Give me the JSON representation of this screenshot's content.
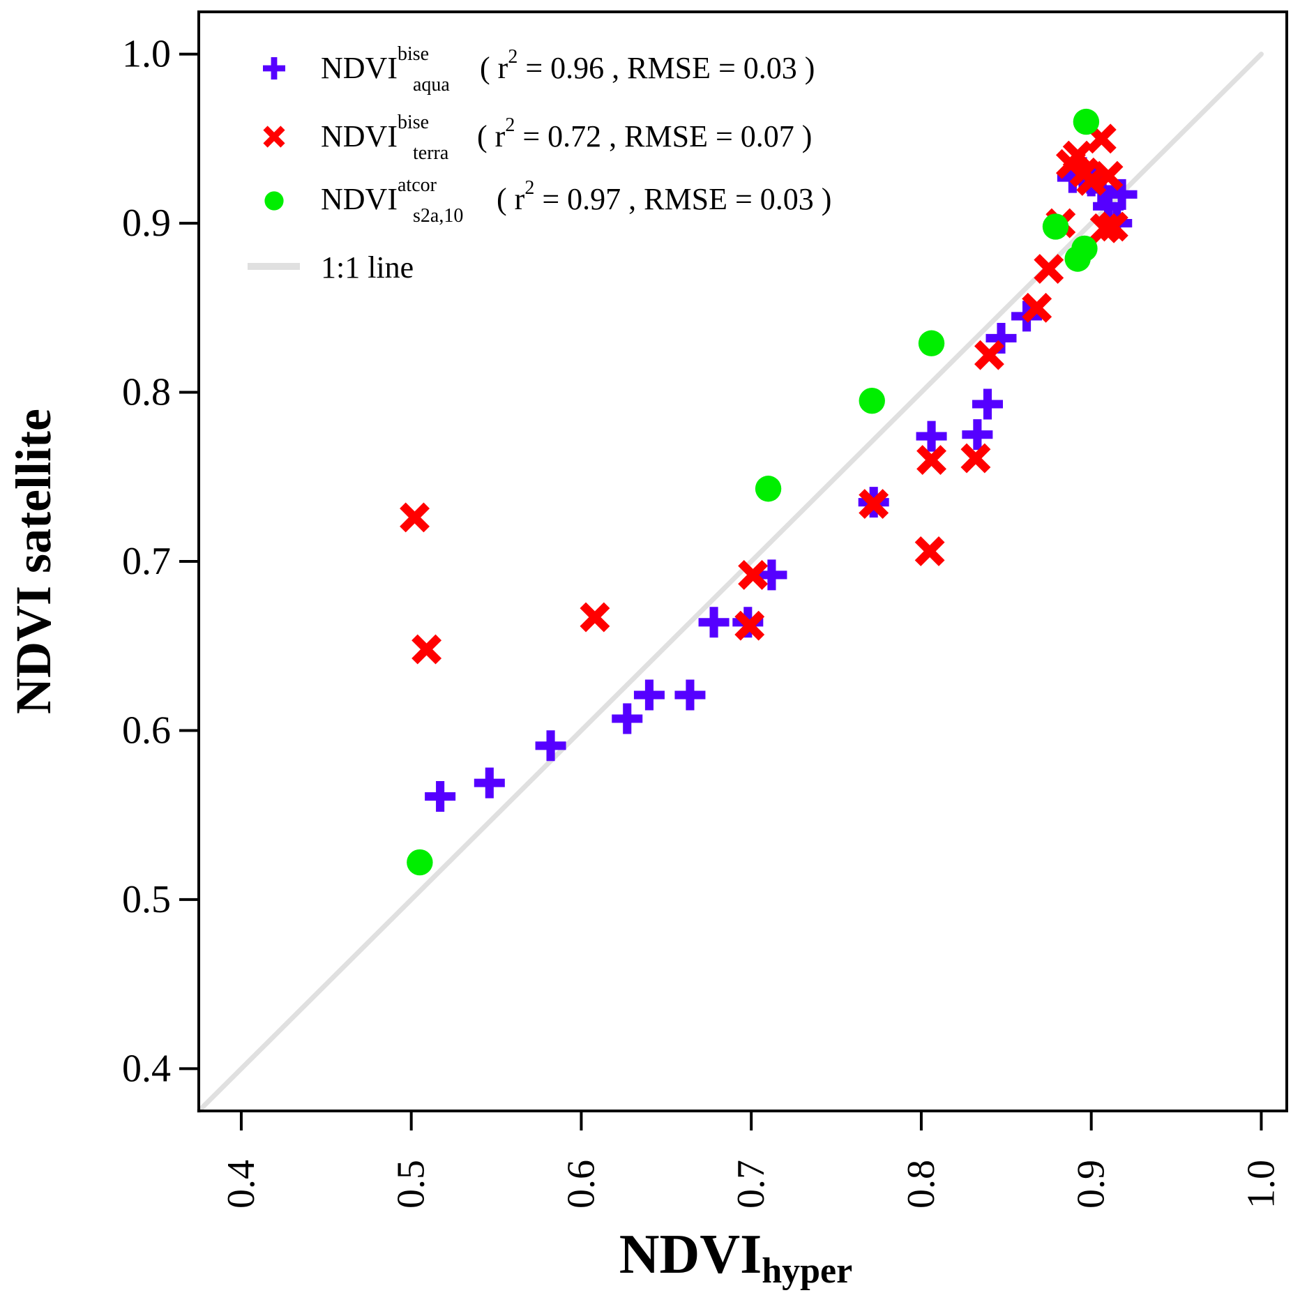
{
  "chart_data": {
    "type": "scatter",
    "title": "",
    "xlabel": {
      "main": "NDVI",
      "sub": "hyper"
    },
    "ylabel": "NDVI satellite",
    "xlim": [
      0.375,
      1.015
    ],
    "ylim": [
      0.375,
      1.025
    ],
    "xticks": [
      "0.4",
      "0.5",
      "0.6",
      "0.7",
      "0.8",
      "0.9",
      "1.0"
    ],
    "yticks": [
      "0.4",
      "0.5",
      "0.6",
      "0.7",
      "0.8",
      "0.9",
      "1.0"
    ],
    "xtick_values": [
      0.4,
      0.5,
      0.6,
      0.7,
      0.8,
      0.9,
      1.0
    ],
    "ytick_values": [
      0.4,
      0.5,
      0.6,
      0.7,
      0.8,
      0.9,
      1.0
    ],
    "series": [
      {
        "name": "aqua",
        "marker": "plus",
        "color": "#5500ff",
        "legend": {
          "base": "NDVI",
          "sup": "bise",
          "sub": "aqua",
          "stats_pre": "( r",
          "stats_exp": "2",
          "stats_post": " = 0.96 , RMSE = 0.03 )"
        },
        "points": [
          [
            0.517,
            0.561
          ],
          [
            0.546,
            0.569
          ],
          [
            0.582,
            0.591
          ],
          [
            0.627,
            0.607
          ],
          [
            0.64,
            0.621
          ],
          [
            0.664,
            0.621
          ],
          [
            0.678,
            0.664
          ],
          [
            0.698,
            0.664
          ],
          [
            0.712,
            0.692
          ],
          [
            0.772,
            0.735
          ],
          [
            0.806,
            0.774
          ],
          [
            0.833,
            0.775
          ],
          [
            0.839,
            0.793
          ],
          [
            0.847,
            0.832
          ],
          [
            0.862,
            0.845
          ],
          [
            0.889,
            0.927
          ],
          [
            0.895,
            0.93
          ],
          [
            0.9,
            0.925
          ],
          [
            0.906,
            0.92
          ],
          [
            0.91,
            0.91
          ],
          [
            0.915,
            0.9
          ],
          [
            0.918,
            0.917
          ]
        ]
      },
      {
        "name": "terra",
        "marker": "cross",
        "color": "#ff0000",
        "legend": {
          "base": "NDVI",
          "sup": "bise",
          "sub": "terra",
          "stats_pre": "( r",
          "stats_exp": "2",
          "stats_post": " = 0.72 , RMSE = 0.07 )"
        },
        "points": [
          [
            0.502,
            0.726
          ],
          [
            0.509,
            0.648
          ],
          [
            0.608,
            0.667
          ],
          [
            0.699,
            0.662
          ],
          [
            0.701,
            0.692
          ],
          [
            0.772,
            0.734
          ],
          [
            0.806,
            0.76
          ],
          [
            0.805,
            0.706
          ],
          [
            0.832,
            0.761
          ],
          [
            0.84,
            0.822
          ],
          [
            0.868,
            0.85
          ],
          [
            0.875,
            0.873
          ],
          [
            0.882,
            0.9
          ],
          [
            0.888,
            0.935
          ],
          [
            0.892,
            0.94
          ],
          [
            0.896,
            0.93
          ],
          [
            0.9,
            0.925
          ],
          [
            0.906,
            0.95
          ],
          [
            0.91,
            0.928
          ],
          [
            0.913,
            0.898
          ],
          [
            0.908,
            0.897
          ]
        ]
      },
      {
        "name": "s2a",
        "marker": "circle",
        "color": "#00ee00",
        "legend": {
          "base": "NDVI",
          "sup": "atcor",
          "sub": "s2a,10",
          "stats_pre": "( r",
          "stats_exp": "2",
          "stats_post": " = 0.97 , RMSE = 0.03 )"
        },
        "points": [
          [
            0.505,
            0.522
          ],
          [
            0.71,
            0.743
          ],
          [
            0.771,
            0.795
          ],
          [
            0.806,
            0.829
          ],
          [
            0.879,
            0.898
          ],
          [
            0.892,
            0.879
          ],
          [
            0.896,
            0.885
          ],
          [
            0.897,
            0.96
          ]
        ]
      }
    ],
    "reference_line": {
      "name": "1:1 line",
      "color": "#e0e0e0",
      "from": [
        0.375,
        0.375
      ],
      "to": [
        1.0,
        1.0
      ]
    },
    "legend_position": "top-left"
  }
}
